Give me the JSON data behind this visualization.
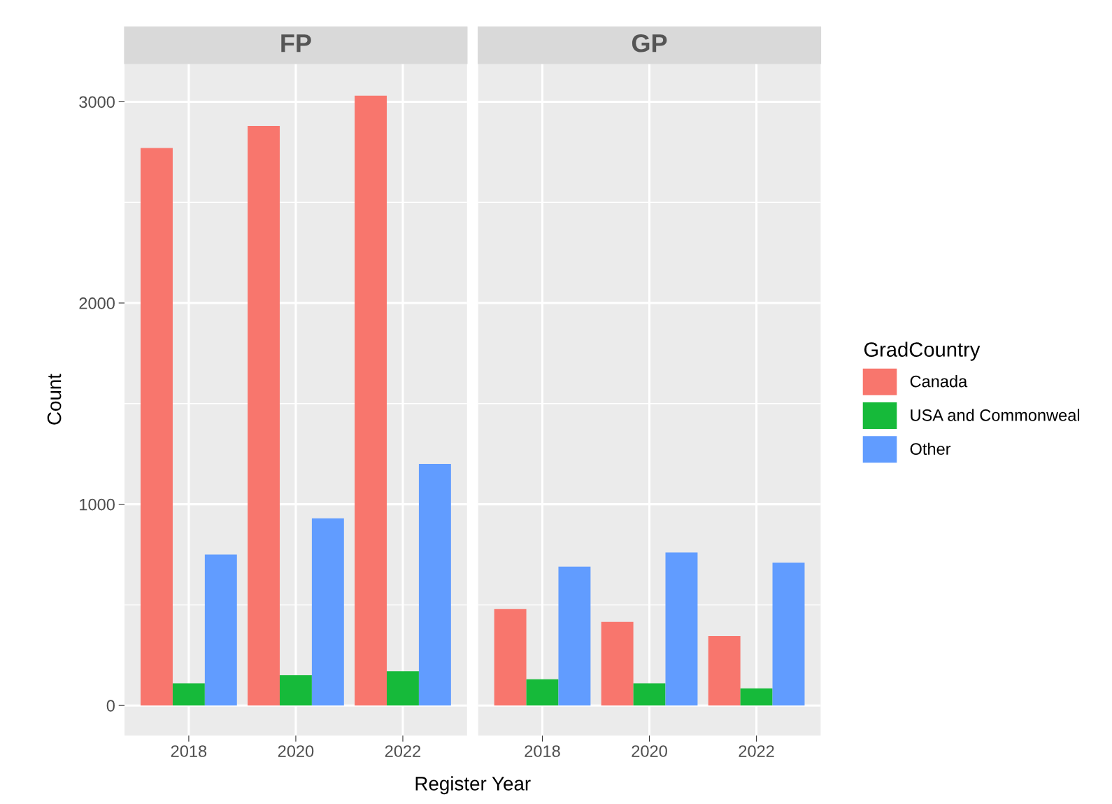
{
  "chart_data": [
    {
      "type": "bar",
      "title": "FP",
      "categories": [
        "2018",
        "2020",
        "2022"
      ],
      "xlabel": "Register Year",
      "ylabel": "Count",
      "series": [
        {
          "name": "Canada",
          "color": "#f8766d",
          "values": [
            2770,
            2880,
            3030
          ]
        },
        {
          "name": "USA and Commonweal",
          "color": "#16ba3a",
          "values": [
            110,
            150,
            170
          ]
        },
        {
          "name": "Other",
          "color": "#619cff",
          "values": [
            750,
            930,
            1200
          ]
        }
      ],
      "ylim": [
        -150,
        3190
      ],
      "yticks": [
        0,
        {
          "value": 500,
          "label": null
        },
        1000,
        {
          "value": 1500,
          "label": null
        },
        2000,
        {
          "value": 2500,
          "label": null
        },
        3000
      ],
      "grid": true,
      "legend": "right",
      "legend_title": "GradCountry"
    },
    {
      "type": "bar",
      "title": "GP",
      "categories": [
        "2018",
        "2020",
        "2022"
      ],
      "series": [
        {
          "color": "#f8766d",
          "values": [
            480,
            415,
            345
          ]
        },
        {
          "color": "#16ba3a",
          "values": [
            130,
            110,
            85
          ]
        },
        {
          "color": "#619cff",
          "values": [
            690,
            760,
            710
          ]
        }
      ],
      "ylim": [
        -150,
        3190
      ],
      "yticks": [
        0,
        {
          "value": 500,
          "label": null
        },
        1000,
        {
          "value": 1500,
          "label": null
        },
        2000,
        {
          "value": 2500,
          "label": null
        },
        3000
      ],
      "grid": true,
      "tick_labels": "x"
    }
  ]
}
